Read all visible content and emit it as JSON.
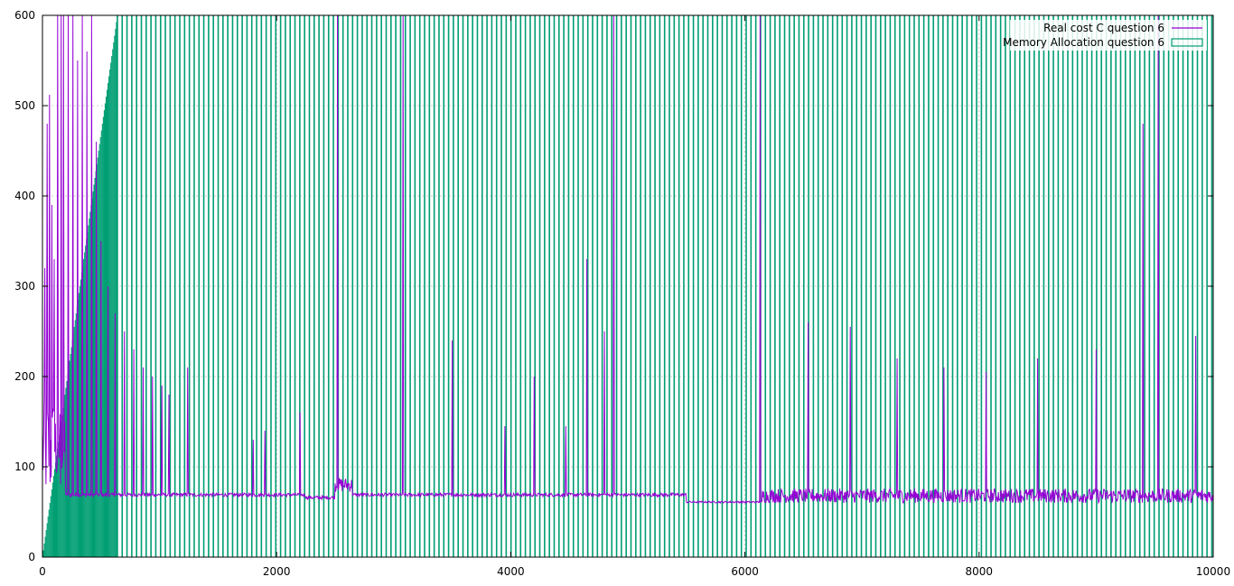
{
  "chart_data": {
    "type": "line",
    "xlim": [
      0,
      10000
    ],
    "ylim": [
      0,
      600
    ],
    "x_ticks": [
      0,
      2000,
      4000,
      6000,
      8000,
      10000
    ],
    "y_ticks": [
      0,
      100,
      200,
      300,
      400,
      500,
      600
    ],
    "x_tick_labels": [
      "0",
      "2000",
      "4000",
      "6000",
      "8000",
      "10000"
    ],
    "y_tick_labels": [
      "0",
      "100",
      "200",
      "300",
      "400",
      "500",
      "600"
    ],
    "grid": true,
    "legend_position": "top-right",
    "series": [
      {
        "name": "Real cost C question 6",
        "kind": "line",
        "color": "#9400d3",
        "baseline_segments": [
          {
            "x_start": 0,
            "x_end": 200,
            "level": 120,
            "noise": 60
          },
          {
            "x_start": 200,
            "x_end": 2250,
            "level": 69,
            "noise": 2
          },
          {
            "x_start": 2250,
            "x_end": 2500,
            "level": 66,
            "noise": 2
          },
          {
            "x_start": 2500,
            "x_end": 2650,
            "level": 80,
            "noise": 8
          },
          {
            "x_start": 2650,
            "x_end": 5500,
            "level": 69,
            "noise": 2
          },
          {
            "x_start": 5500,
            "x_end": 6150,
            "level": 61,
            "noise": 1
          },
          {
            "x_start": 6150,
            "x_end": 10000,
            "level": 68,
            "noise": 8
          }
        ],
        "spikes": [
          {
            "x": 20,
            "y": 320
          },
          {
            "x": 40,
            "y": 480
          },
          {
            "x": 60,
            "y": 512
          },
          {
            "x": 80,
            "y": 390
          },
          {
            "x": 100,
            "y": 330
          },
          {
            "x": 130,
            "y": 600
          },
          {
            "x": 160,
            "y": 600
          },
          {
            "x": 180,
            "y": 600
          },
          {
            "x": 220,
            "y": 600
          },
          {
            "x": 260,
            "y": 600
          },
          {
            "x": 300,
            "y": 550
          },
          {
            "x": 340,
            "y": 600
          },
          {
            "x": 380,
            "y": 560
          },
          {
            "x": 420,
            "y": 600
          },
          {
            "x": 460,
            "y": 460
          },
          {
            "x": 500,
            "y": 350
          },
          {
            "x": 560,
            "y": 300
          },
          {
            "x": 620,
            "y": 270
          },
          {
            "x": 700,
            "y": 250
          },
          {
            "x": 780,
            "y": 230
          },
          {
            "x": 860,
            "y": 210
          },
          {
            "x": 940,
            "y": 200
          },
          {
            "x": 1020,
            "y": 190
          },
          {
            "x": 1080,
            "y": 180
          },
          {
            "x": 1240,
            "y": 210
          },
          {
            "x": 1800,
            "y": 130
          },
          {
            "x": 1900,
            "y": 140
          },
          {
            "x": 2200,
            "y": 160
          },
          {
            "x": 2520,
            "y": 600
          },
          {
            "x": 3080,
            "y": 600
          },
          {
            "x": 3500,
            "y": 240
          },
          {
            "x": 3950,
            "y": 145
          },
          {
            "x": 4200,
            "y": 200
          },
          {
            "x": 4470,
            "y": 145
          },
          {
            "x": 4650,
            "y": 330
          },
          {
            "x": 4800,
            "y": 250
          },
          {
            "x": 4880,
            "y": 600
          },
          {
            "x": 6130,
            "y": 600
          },
          {
            "x": 6540,
            "y": 260
          },
          {
            "x": 6900,
            "y": 255
          },
          {
            "x": 7300,
            "y": 220
          },
          {
            "x": 7700,
            "y": 210
          },
          {
            "x": 8060,
            "y": 205
          },
          {
            "x": 8500,
            "y": 220
          },
          {
            "x": 9000,
            "y": 230
          },
          {
            "x": 9400,
            "y": 480
          },
          {
            "x": 9530,
            "y": 600
          },
          {
            "x": 9850,
            "y": 245
          }
        ]
      },
      {
        "name": "Memory Allocation question 6",
        "kind": "impulses",
        "color": "#009e73",
        "pattern": {
          "ramp_end_x": 640,
          "ramp_end_y": 600,
          "dense_step": 8,
          "sparse_start_x": 640,
          "sparse_step": 41,
          "max_value": 600
        }
      }
    ]
  }
}
